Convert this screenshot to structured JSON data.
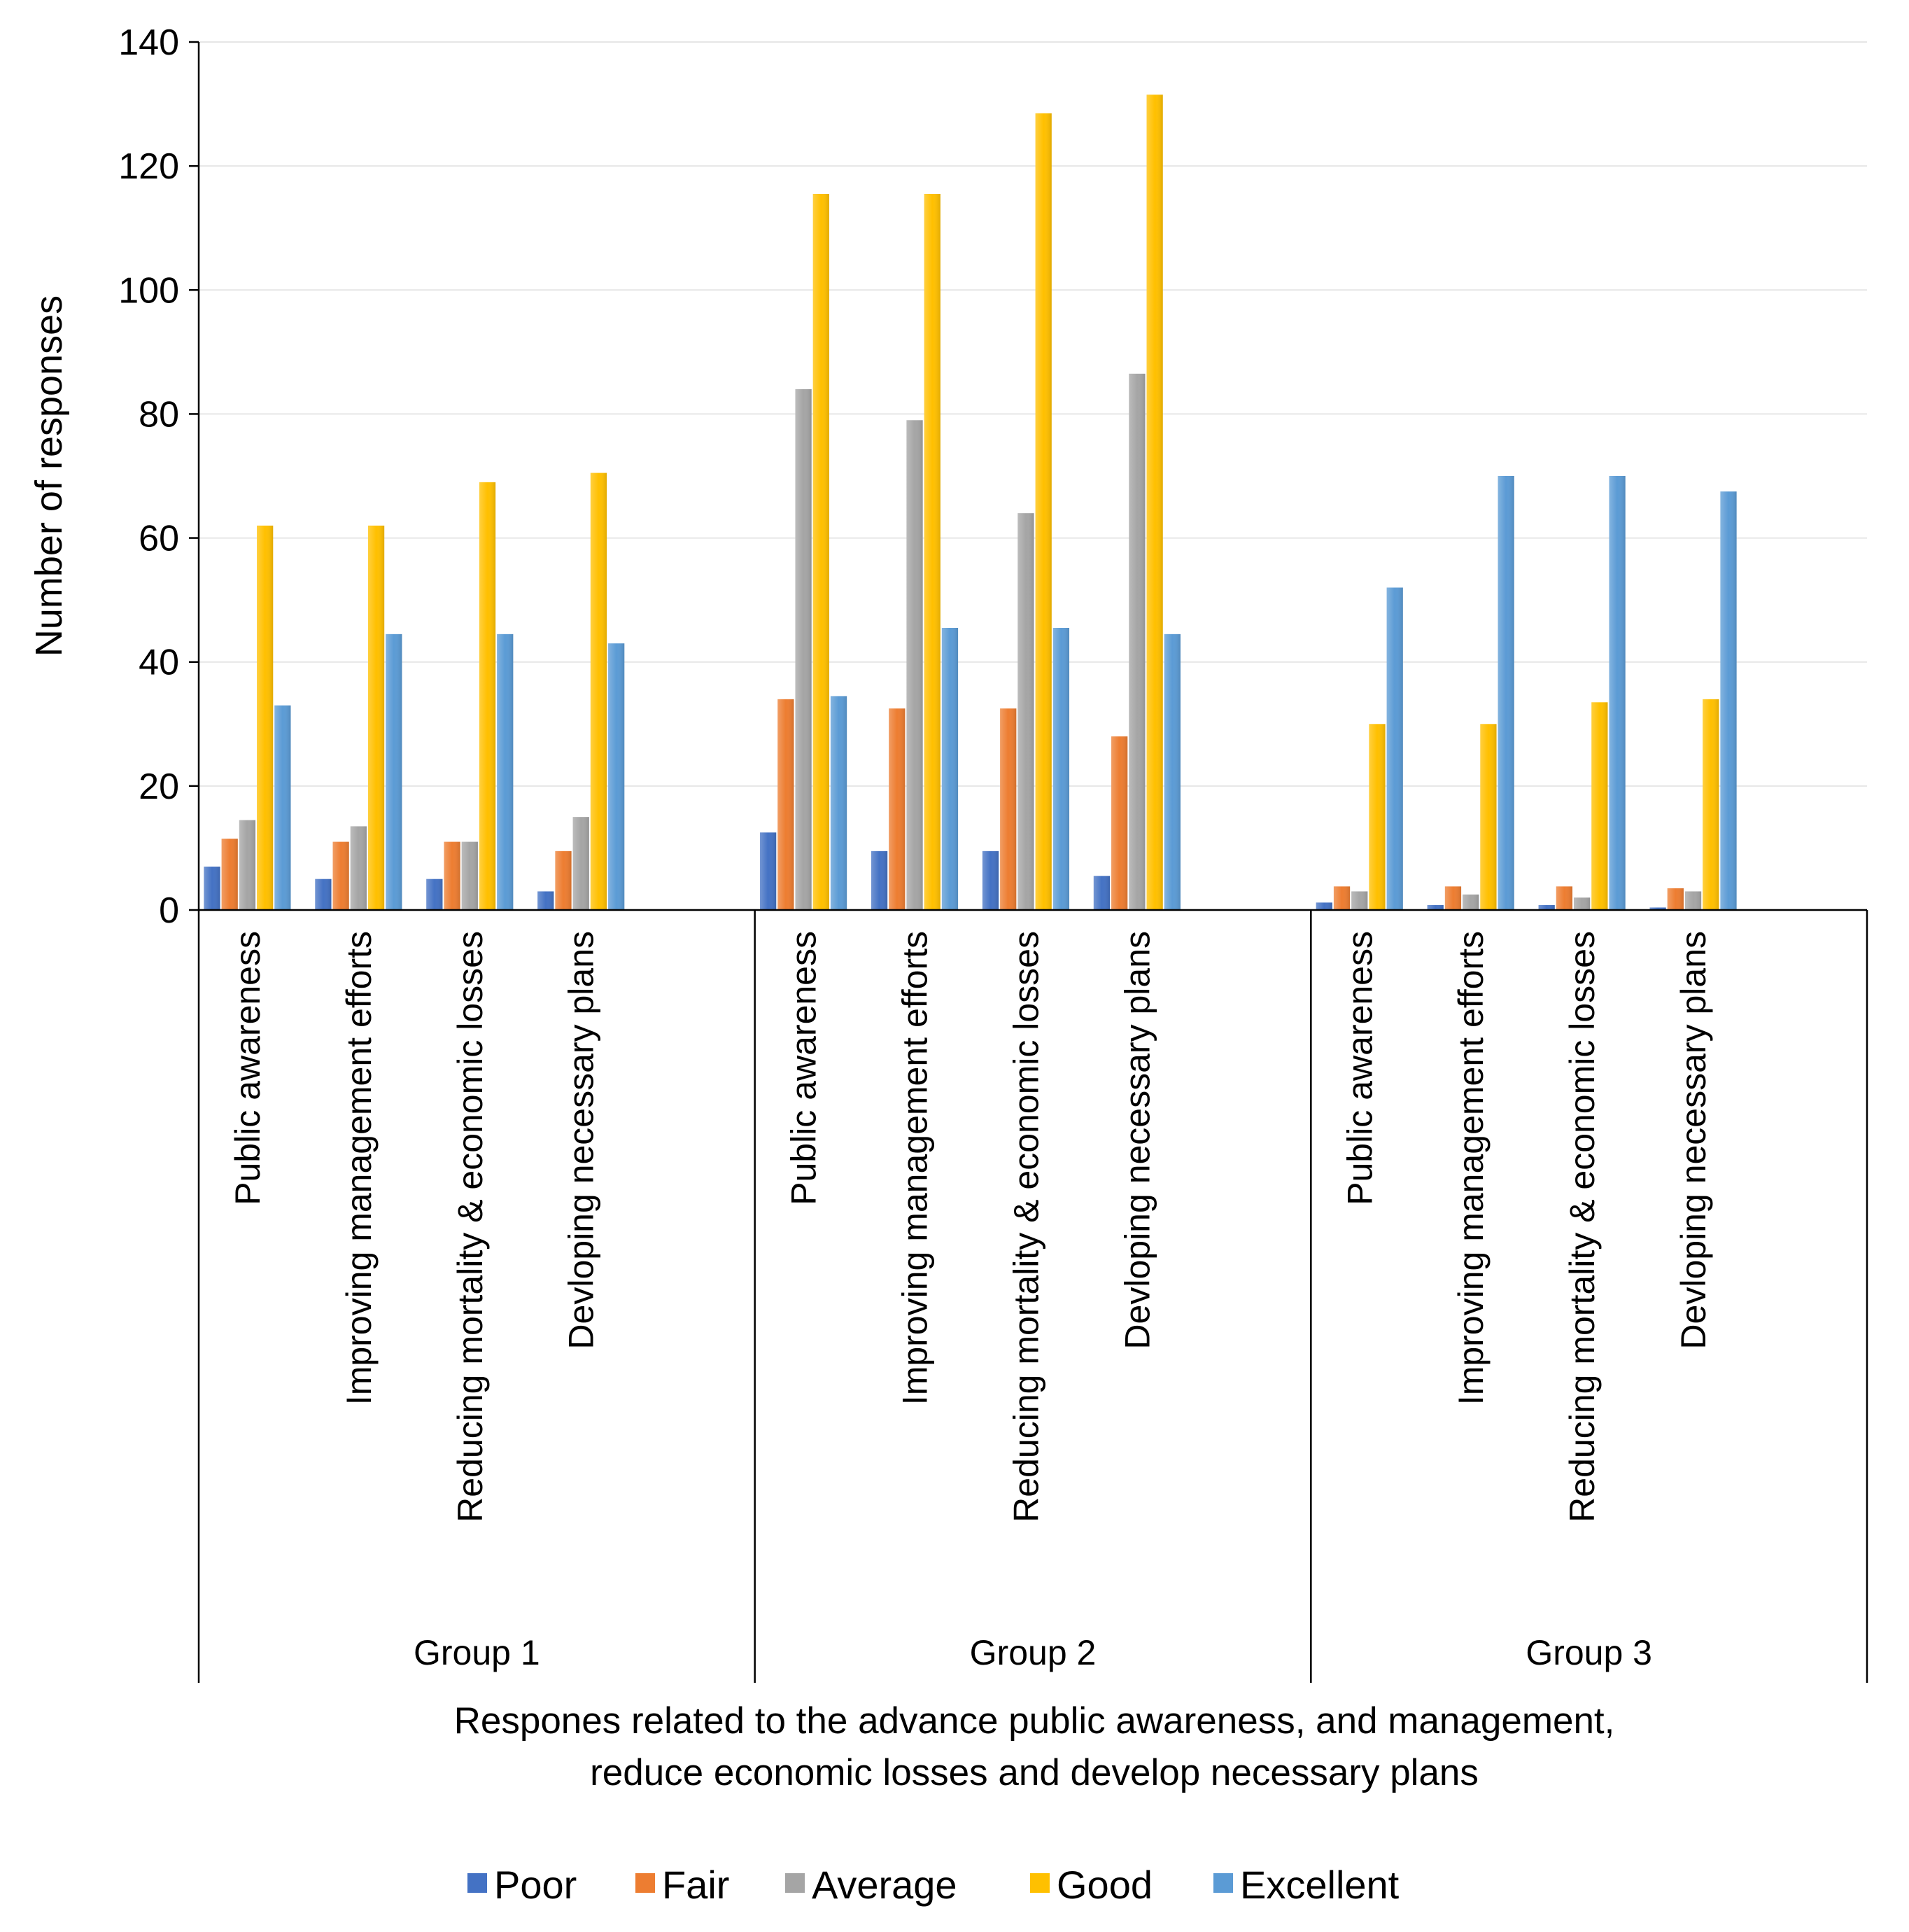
{
  "chart_data": {
    "type": "bar",
    "title": "",
    "ylabel": "Number of responses",
    "xlabel_lines": [
      "Respones related to the advance public awareness, and management,",
      "reduce economic losses and develop necessary plans"
    ],
    "ylim": [
      0,
      140
    ],
    "yticks": [
      0,
      20,
      40,
      60,
      80,
      100,
      120,
      140
    ],
    "grid": true,
    "legend_position": "bottom",
    "groups": [
      {
        "name": "Group 1",
        "categories": [
          "Public awareness",
          "Improving management efforts",
          "Reducing mortality & economic losses",
          "Devloping necessary plans"
        ]
      },
      {
        "name": "Group 2",
        "categories": [
          "Public awareness",
          "Improving management efforts",
          "Reducing mortality & economic losses",
          "Devloping necessary plans"
        ]
      },
      {
        "name": "Group 3",
        "categories": [
          "Public awareness",
          "Improving management efforts",
          "Reducing mortality & economic losses",
          "Devloping necessary plans"
        ]
      }
    ],
    "series": [
      {
        "name": "Poor",
        "color": "#4472C4",
        "values": [
          7,
          5,
          5,
          3,
          12.5,
          9.5,
          9.5,
          5.5,
          1.2,
          0.8,
          0.8,
          0.4
        ]
      },
      {
        "name": "Fair",
        "color": "#ED7D31",
        "values": [
          11.5,
          11,
          11,
          9.5,
          34,
          32.5,
          32.5,
          28,
          3.8,
          3.8,
          3.8,
          3.5
        ]
      },
      {
        "name": "Average",
        "color": "#A5A5A5",
        "values": [
          14.5,
          13.5,
          11,
          15,
          84,
          79,
          64,
          86.5,
          3,
          2.5,
          2,
          3
        ]
      },
      {
        "name": "Good",
        "color": "#FFC000",
        "values": [
          62,
          62,
          69,
          70.5,
          115.5,
          115.5,
          128.5,
          131.5,
          30,
          30,
          33.5,
          34
        ]
      },
      {
        "name": "Excellent",
        "color": "#5B9BD5",
        "values": [
          33,
          44.5,
          44.5,
          43,
          34.5,
          45.5,
          45.5,
          44.5,
          52,
          70,
          70,
          67.5
        ]
      }
    ]
  }
}
